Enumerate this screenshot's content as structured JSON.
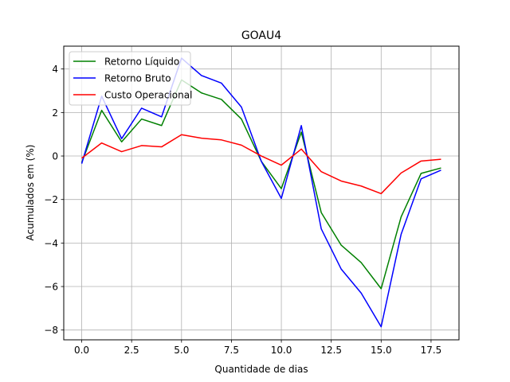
{
  "chart_data": {
    "type": "line",
    "title": "GOAU4",
    "xlabel": "Quantidade de dias",
    "ylabel": "Acumulados em (%)",
    "xlim": [
      -0.9,
      18.9
    ],
    "ylim": [
      -8.45,
      5.05
    ],
    "x_ticks": [
      0.0,
      2.5,
      5.0,
      7.5,
      10.0,
      12.5,
      15.0,
      17.5
    ],
    "x_tick_labels": [
      "0.0",
      "2.5",
      "5.0",
      "7.5",
      "10.0",
      "12.5",
      "15.0",
      "17.5"
    ],
    "y_ticks": [
      -8,
      -6,
      -4,
      -2,
      0,
      2,
      4
    ],
    "y_tick_labels": [
      "−8",
      "−6",
      "−4",
      "−2",
      "0",
      "2",
      "4"
    ],
    "grid": true,
    "legend_position": "upper-left",
    "x": [
      0,
      1,
      2,
      3,
      4,
      5,
      6,
      7,
      8,
      9,
      10,
      11,
      12,
      13,
      14,
      15,
      16,
      17,
      18
    ],
    "series": [
      {
        "name": "Retorno Líquido",
        "color": "#008000",
        "values": [
          -0.3,
          2.1,
          0.65,
          1.7,
          1.4,
          3.5,
          2.9,
          2.6,
          1.7,
          -0.25,
          -1.5,
          1.1,
          -2.6,
          -4.1,
          -4.9,
          -6.1,
          -2.8,
          -0.8,
          -0.55
        ]
      },
      {
        "name": "Retorno Bruto",
        "color": "#0000ff",
        "values": [
          -0.35,
          2.75,
          0.8,
          2.2,
          1.8,
          4.5,
          3.7,
          3.35,
          2.25,
          -0.25,
          -1.95,
          1.4,
          -3.35,
          -5.2,
          -6.3,
          -7.85,
          -3.6,
          -1.05,
          -0.65
        ]
      },
      {
        "name": "Custo Operacional",
        "color": "#ff0000",
        "values": [
          -0.1,
          0.6,
          0.2,
          0.48,
          0.42,
          0.98,
          0.82,
          0.74,
          0.5,
          0.0,
          -0.42,
          0.32,
          -0.72,
          -1.15,
          -1.38,
          -1.73,
          -0.78,
          -0.23,
          -0.15
        ]
      }
    ]
  }
}
